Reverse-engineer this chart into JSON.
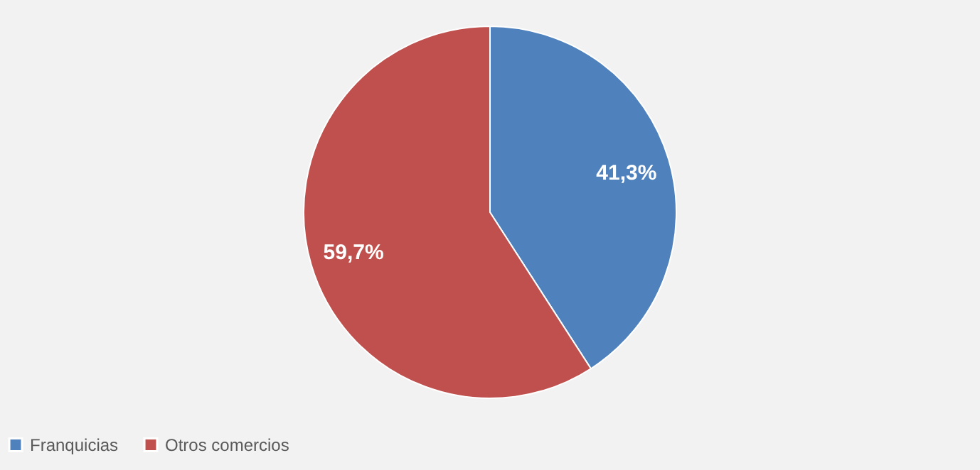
{
  "chart_data": {
    "type": "pie",
    "categories": [
      "Franquicias",
      "Otros comercios"
    ],
    "values": [
      41.3,
      59.7
    ],
    "colors": [
      "#4f81bd",
      "#c0504d"
    ],
    "value_labels": [
      "41,3%",
      "59,7%"
    ],
    "legend": "bottom"
  }
}
